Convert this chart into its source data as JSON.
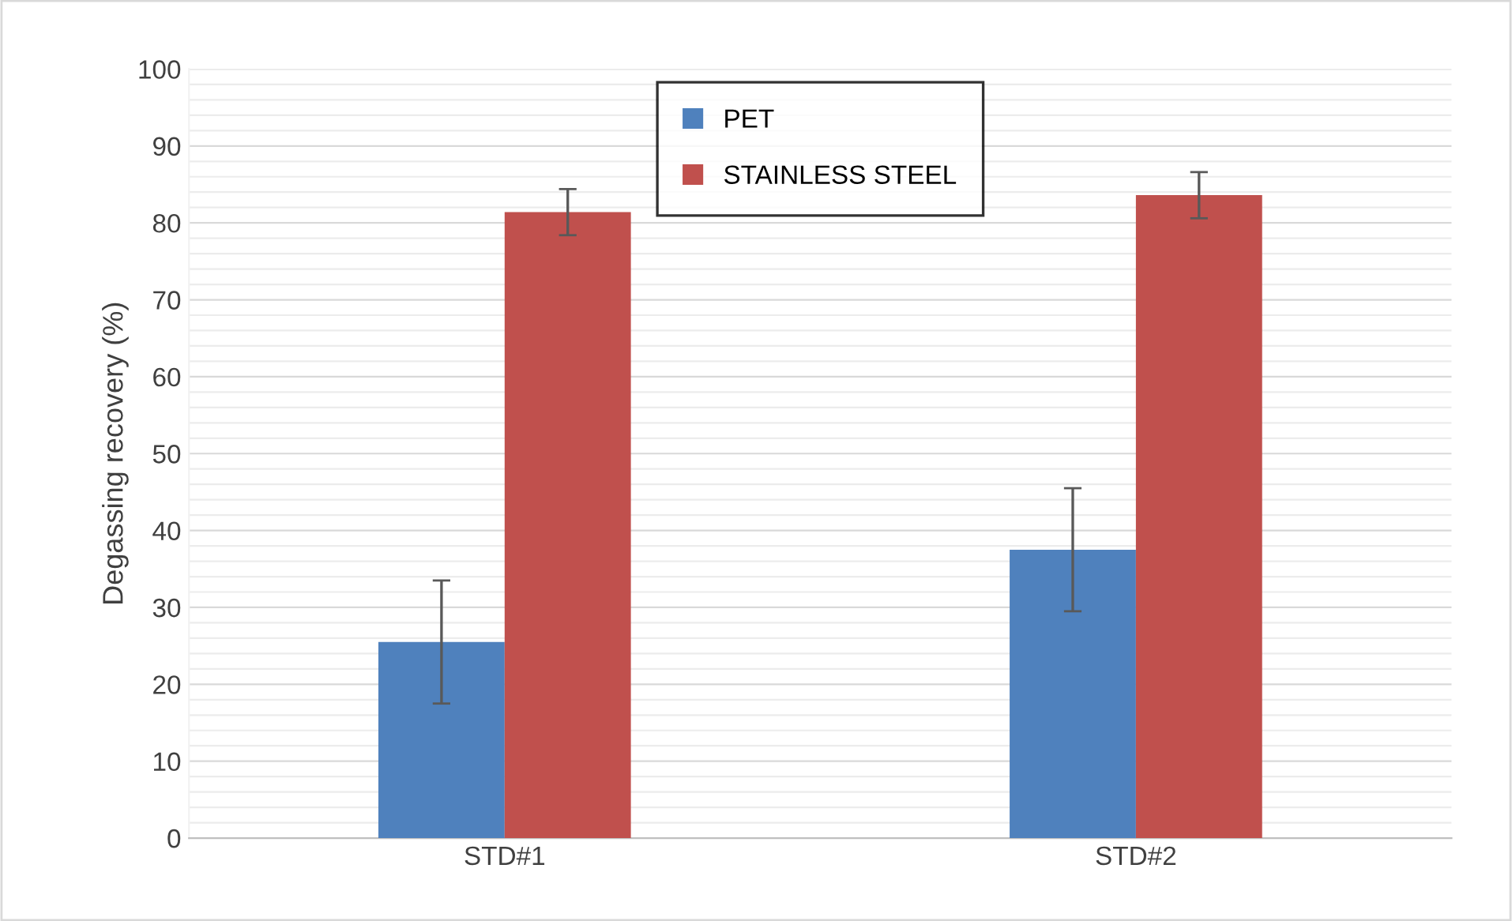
{
  "chart_data": {
    "type": "bar",
    "ylabel": "Degassing recovery (%)",
    "categories": [
      "STD#1",
      "STD#2"
    ],
    "series": [
      {
        "name": "PET",
        "color": "#4f81bd",
        "values": [
          25.5,
          37.5
        ],
        "errors": [
          8,
          8
        ]
      },
      {
        "name": "STAINLESS STEEL",
        "color": "#c0504d",
        "values": [
          81.4,
          83.6
        ],
        "errors": [
          3,
          3
        ]
      }
    ],
    "ylim": [
      0,
      100
    ],
    "yticks": [
      0,
      {
        "value": 2,
        "label": null
      },
      {
        "value": 4,
        "label": null
      },
      {
        "value": 6,
        "label": null
      },
      {
        "value": 8,
        "label": null
      },
      10,
      {
        "value": 12,
        "label": null
      },
      {
        "value": 14,
        "label": null
      },
      {
        "value": 16,
        "label": null
      },
      {
        "value": 18,
        "label": null
      },
      20,
      {
        "value": 22,
        "label": null
      },
      {
        "value": 24,
        "label": null
      },
      {
        "value": 26,
        "label": null
      },
      {
        "value": 28,
        "label": null
      },
      30,
      {
        "value": 32,
        "label": null
      },
      {
        "value": 34,
        "label": null
      },
      {
        "value": 36,
        "label": null
      },
      {
        "value": 38,
        "label": null
      },
      40,
      {
        "value": 42,
        "label": null
      },
      {
        "value": 44,
        "label": null
      },
      {
        "value": 46,
        "label": null
      },
      {
        "value": 48,
        "label": null
      },
      50,
      {
        "value": 52,
        "label": null
      },
      {
        "value": 54,
        "label": null
      },
      {
        "value": 56,
        "label": null
      },
      {
        "value": 58,
        "label": null
      },
      60,
      {
        "value": 62,
        "label": null
      },
      {
        "value": 64,
        "label": null
      },
      {
        "value": 66,
        "label": null
      },
      {
        "value": 68,
        "label": null
      },
      70,
      {
        "value": 72,
        "label": null
      },
      {
        "value": 74,
        "label": null
      },
      {
        "value": 76,
        "label": null
      },
      {
        "value": 78,
        "label": null
      },
      80,
      {
        "value": 82,
        "label": null
      },
      {
        "value": 84,
        "label": null
      },
      {
        "value": 86,
        "label": null
      },
      {
        "value": 88,
        "label": null
      },
      90,
      {
        "value": 92,
        "label": null
      },
      {
        "value": 94,
        "label": null
      },
      {
        "value": 96,
        "label": null
      },
      {
        "value": 98,
        "label": null
      },
      100
    ],
    "grid": "y",
    "legend": "top"
  }
}
